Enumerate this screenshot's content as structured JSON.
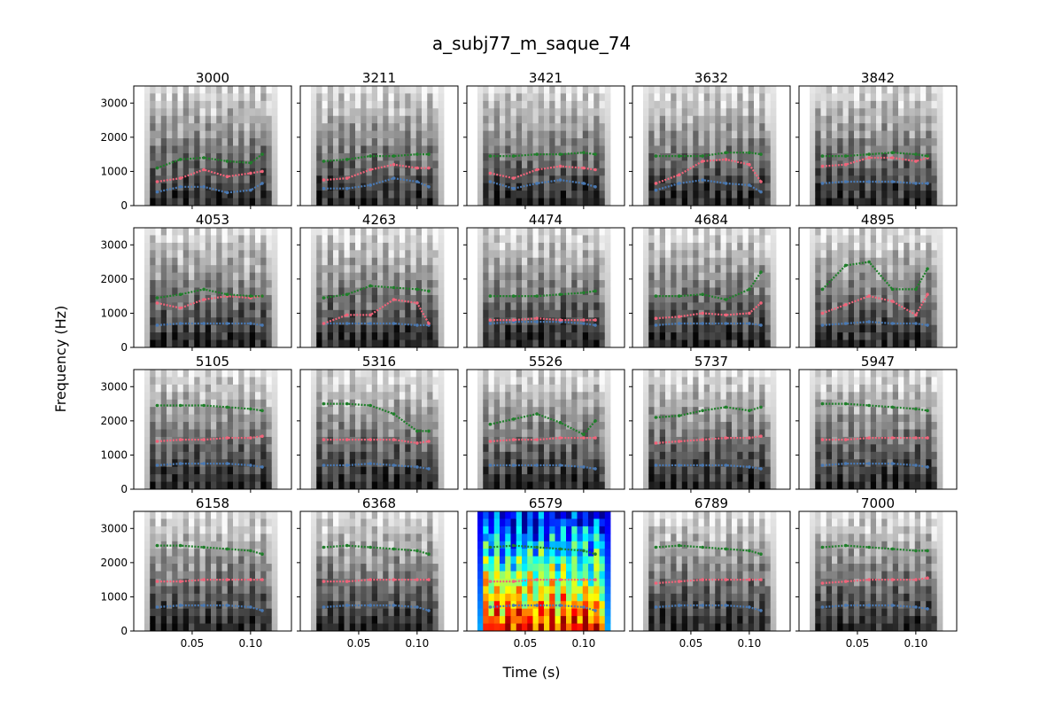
{
  "chart_data": {
    "type": "scatter",
    "title": "a_subj77_m_saque_74",
    "xlabel": "Time (s)",
    "ylabel": "Frequency (Hz)",
    "xlim": [
      0.0,
      0.135
    ],
    "ylim": [
      0,
      3500
    ],
    "x_ticks": [
      0.05,
      0.1
    ],
    "x_tick_labels": [
      "0.05",
      "0.10"
    ],
    "y_ticks": [
      0,
      1000,
      2000,
      3000
    ],
    "y_tick_labels": [
      "0",
      "1000",
      "2000",
      "3000"
    ],
    "grid": false,
    "legend": "none",
    "series_colors": {
      "f1": "#4a79b3",
      "f2": "#f0647a",
      "f3": "#1f7f2a"
    },
    "colormaps": {
      "gray": "gray",
      "highlight": "jet"
    },
    "highlighted_panel": "6579",
    "panels": [
      {
        "label": "3000",
        "f1": [
          400,
          550,
          550,
          380,
          450,
          650
        ],
        "f2": [
          700,
          800,
          1050,
          850,
          950,
          1000
        ],
        "f3": [
          1100,
          1350,
          1400,
          1300,
          1250,
          1500
        ]
      },
      {
        "label": "3211",
        "f1": [
          500,
          500,
          600,
          800,
          700,
          550
        ],
        "f2": [
          750,
          800,
          1050,
          1200,
          1100,
          1100
        ],
        "f3": [
          1300,
          1350,
          1450,
          1450,
          1500,
          1500
        ]
      },
      {
        "label": "3421",
        "f1": [
          700,
          500,
          650,
          750,
          650,
          550
        ],
        "f2": [
          950,
          800,
          1050,
          1150,
          1100,
          1050
        ],
        "f3": [
          1450,
          1450,
          1500,
          1500,
          1550,
          1500
        ]
      },
      {
        "label": "3632",
        "f1": [
          450,
          650,
          750,
          650,
          600,
          400
        ],
        "f2": [
          650,
          900,
          1300,
          1350,
          1200,
          700
        ],
        "f3": [
          1450,
          1450,
          1450,
          1550,
          1550,
          1500
        ]
      },
      {
        "label": "3842",
        "f1": [
          650,
          700,
          700,
          700,
          650,
          650
        ],
        "f2": [
          1150,
          1200,
          1400,
          1400,
          1300,
          1400
        ],
        "f3": [
          1450,
          1450,
          1500,
          1550,
          1500,
          1450
        ]
      },
      {
        "label": "4053",
        "f1": [
          650,
          700,
          700,
          700,
          700,
          650
        ],
        "f2": [
          1300,
          1150,
          1400,
          1500,
          1450,
          1500
        ],
        "f3": [
          1450,
          1550,
          1700,
          1550,
          1500,
          1500
        ]
      },
      {
        "label": "4263",
        "f1": [
          700,
          700,
          700,
          700,
          650,
          650
        ],
        "f2": [
          700,
          950,
          950,
          1400,
          1300,
          700
        ],
        "f3": [
          1450,
          1550,
          1800,
          1750,
          1700,
          1650
        ]
      },
      {
        "label": "4474",
        "f1": [
          700,
          750,
          750,
          750,
          700,
          650
        ],
        "f2": [
          800,
          800,
          850,
          800,
          800,
          800
        ],
        "f3": [
          1500,
          1500,
          1500,
          1550,
          1600,
          1650
        ]
      },
      {
        "label": "4684",
        "f1": [
          650,
          700,
          700,
          700,
          700,
          650
        ],
        "f2": [
          850,
          900,
          1000,
          950,
          1000,
          1300
        ],
        "f3": [
          1500,
          1500,
          1550,
          1400,
          1700,
          2200
        ]
      },
      {
        "label": "4895",
        "f1": [
          650,
          700,
          750,
          700,
          700,
          650
        ],
        "f2": [
          1000,
          1250,
          1500,
          1350,
          950,
          1550
        ],
        "f3": [
          1700,
          2400,
          2500,
          1700,
          1700,
          2300
        ]
      },
      {
        "label": "5105",
        "f1": [
          700,
          750,
          750,
          750,
          700,
          650
        ],
        "f2": [
          1400,
          1450,
          1450,
          1500,
          1500,
          1550
        ],
        "f3": [
          2450,
          2450,
          2450,
          2400,
          2350,
          2300
        ]
      },
      {
        "label": "5316",
        "f1": [
          700,
          700,
          750,
          700,
          650,
          600
        ],
        "f2": [
          1450,
          1450,
          1450,
          1450,
          1350,
          1400
        ],
        "f3": [
          2500,
          2500,
          2450,
          2200,
          1700,
          1700
        ]
      },
      {
        "label": "5526",
        "f1": [
          700,
          700,
          700,
          700,
          650,
          600
        ],
        "f2": [
          1400,
          1450,
          1450,
          1500,
          1500,
          1500
        ],
        "f3": [
          1900,
          2050,
          2200,
          1950,
          1600,
          2000
        ]
      },
      {
        "label": "5737",
        "f1": [
          700,
          700,
          700,
          700,
          650,
          600
        ],
        "f2": [
          1350,
          1400,
          1450,
          1500,
          1500,
          1550
        ],
        "f3": [
          2100,
          2150,
          2300,
          2400,
          2300,
          2400
        ]
      },
      {
        "label": "5947",
        "f1": [
          700,
          750,
          750,
          750,
          700,
          650
        ],
        "f2": [
          1450,
          1450,
          1500,
          1500,
          1500,
          1500
        ],
        "f3": [
          2500,
          2500,
          2450,
          2400,
          2350,
          2300
        ]
      },
      {
        "label": "6158",
        "f1": [
          700,
          750,
          750,
          750,
          700,
          600
        ],
        "f2": [
          1450,
          1450,
          1500,
          1500,
          1500,
          1500
        ],
        "f3": [
          2500,
          2500,
          2450,
          2400,
          2350,
          2250
        ]
      },
      {
        "label": "6368",
        "f1": [
          700,
          750,
          750,
          750,
          700,
          600
        ],
        "f2": [
          1450,
          1450,
          1500,
          1500,
          1500,
          1500
        ],
        "f3": [
          2450,
          2500,
          2450,
          2400,
          2350,
          2250
        ]
      },
      {
        "label": "6579",
        "f1": [
          700,
          750,
          750,
          750,
          700,
          600
        ],
        "f2": [
          1450,
          1450,
          1500,
          1500,
          1500,
          1500
        ],
        "f3": [
          2450,
          2500,
          2450,
          2400,
          2350,
          2250
        ]
      },
      {
        "label": "6789",
        "f1": [
          700,
          750,
          750,
          750,
          700,
          600
        ],
        "f2": [
          1400,
          1450,
          1500,
          1500,
          1500,
          1500
        ],
        "f3": [
          2450,
          2500,
          2450,
          2400,
          2350,
          2250
        ]
      },
      {
        "label": "7000",
        "f1": [
          700,
          750,
          750,
          750,
          700,
          650
        ],
        "f2": [
          1400,
          1450,
          1500,
          1500,
          1500,
          1550
        ],
        "f3": [
          2450,
          2500,
          2450,
          2400,
          2350,
          2350
        ]
      }
    ]
  }
}
